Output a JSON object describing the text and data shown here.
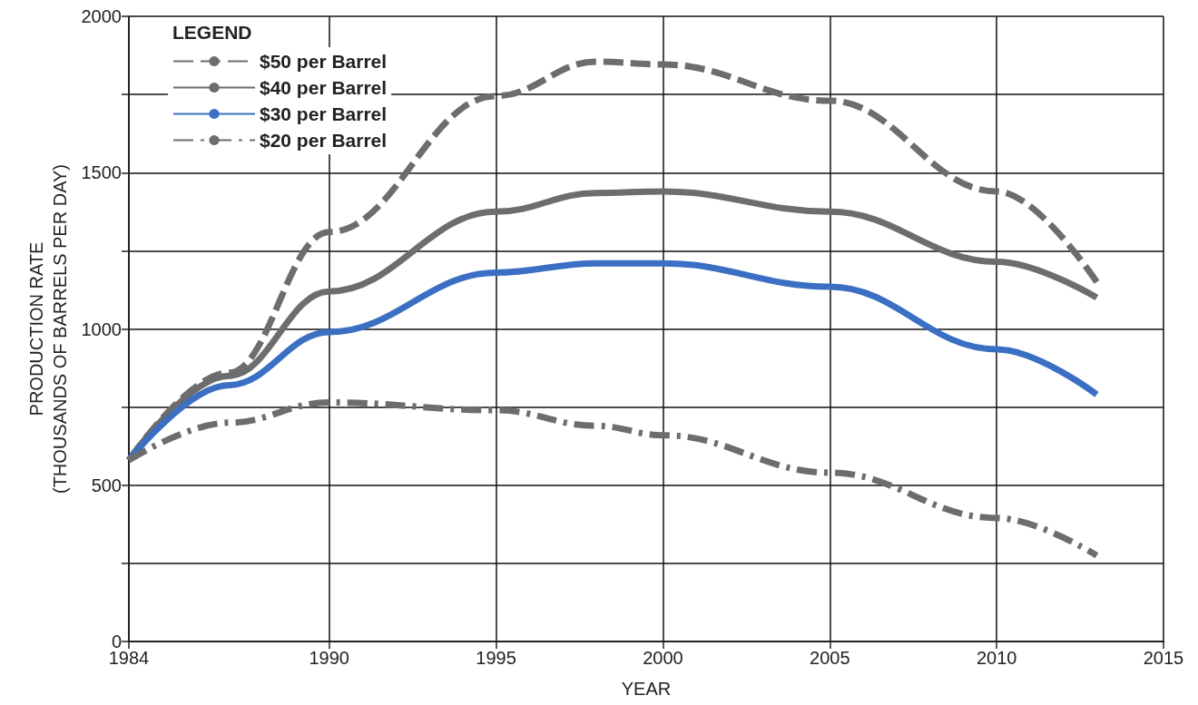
{
  "chart_data": {
    "type": "line",
    "xlabel": "YEAR",
    "ylabel": "PRODUCTION RATE\n(THOUSANDS OF BARRELS PER DAY)",
    "legend_title": "LEGEND",
    "legend": "top left",
    "grid": true,
    "marker": "none",
    "xlim": [
      1984,
      2015
    ],
    "xticks": [
      1984,
      1990,
      1995,
      2000,
      2005,
      2010,
      2015
    ],
    "ylim": [
      0,
      2000
    ],
    "yticks": [
      0,
      {
        "value": 250,
        "label": null
      },
      500,
      {
        "value": 750,
        "label": null
      },
      1000,
      {
        "value": 1250,
        "label": null
      },
      1500,
      {
        "value": 1750,
        "label": null
      },
      2000
    ],
    "x": [
      1984,
      1987,
      1990,
      1995,
      1998,
      2000,
      2005,
      2010,
      2013
    ],
    "series": [
      {
        "name": "$50 per Barrel",
        "color": "#6d6d6d",
        "line_style": "dashed",
        "values": [
          580,
          860,
          1310,
          1745,
          1855,
          1846,
          1730,
          1440,
          1150
        ]
      },
      {
        "name": "$40 per Barrel",
        "color": "#6d6d6d",
        "line_style": "solid",
        "values": [
          580,
          850,
          1120,
          1375,
          1435,
          1440,
          1375,
          1215,
          1100
        ]
      },
      {
        "name": "$30 per Barrel",
        "color": "#3a6fc4",
        "line_style": "solid",
        "values": [
          580,
          820,
          990,
          1180,
          1210,
          1210,
          1135,
          935,
          790
        ]
      },
      {
        "name": "$20 per Barrel",
        "color": "#6d6d6d",
        "line_style": "dashdot",
        "values": [
          580,
          700,
          765,
          740,
          690,
          660,
          540,
          395,
          275
        ]
      }
    ]
  }
}
